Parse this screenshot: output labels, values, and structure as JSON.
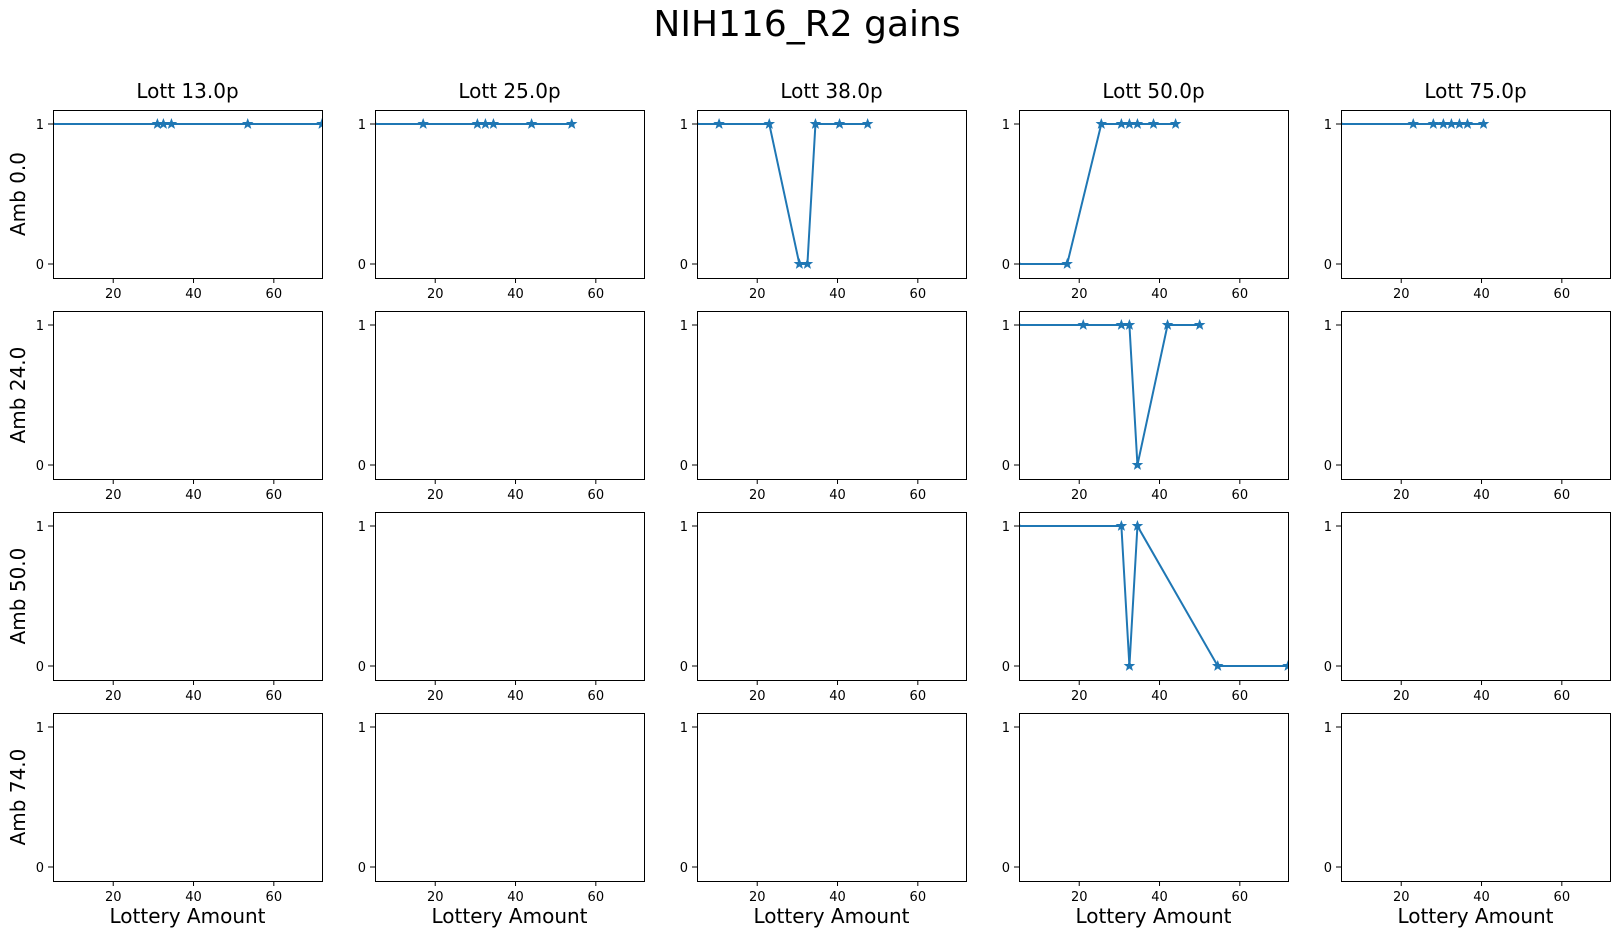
{
  "chart_data": {
    "type": "line",
    "title": "NIH116_R2 gains",
    "xlabel": "Lottery Amount",
    "xlim": [
      5,
      72
    ],
    "ylim": [
      -0.1,
      1.1
    ],
    "xticks": [
      20,
      40,
      60
    ],
    "yticks": [
      0,
      1
    ],
    "marker": "star",
    "line_color": "#1f77b4",
    "columns": [
      "Lott 13.0p",
      "Lott 25.0p",
      "Lott 38.0p",
      "Lott 50.0p",
      "Lott 75.0p"
    ],
    "rows": [
      "Amb 0.0",
      "Amb 24.0",
      "Amb 50.0",
      "Amb 74.0"
    ],
    "panels": [
      {
        "row": 0,
        "col": 0,
        "x": [
          4,
          31,
          32.5,
          34.5,
          53.5,
          72
        ],
        "y": [
          1,
          1,
          1,
          1,
          1,
          1
        ]
      },
      {
        "row": 0,
        "col": 1,
        "x": [
          4,
          17,
          30.5,
          32.5,
          34.5,
          44,
          54
        ],
        "y": [
          1,
          1,
          1,
          1,
          1,
          1,
          1
        ]
      },
      {
        "row": 0,
        "col": 2,
        "x": [
          4,
          10.5,
          23,
          30.5,
          32.5,
          34.5,
          40.5,
          47.5
        ],
        "y": [
          1,
          1,
          1,
          0,
          0,
          1,
          1,
          1
        ]
      },
      {
        "row": 0,
        "col": 3,
        "x": [
          4,
          17,
          25.5,
          30.5,
          32.5,
          34.5,
          38.5,
          44
        ],
        "y": [
          0,
          0,
          1,
          1,
          1,
          1,
          1,
          1
        ]
      },
      {
        "row": 0,
        "col": 4,
        "x": [
          4,
          23,
          28,
          30.5,
          32.5,
          34.5,
          36.5,
          40.5
        ],
        "y": [
          1,
          1,
          1,
          1,
          1,
          1,
          1,
          1
        ]
      },
      {
        "row": 1,
        "col": 3,
        "x": [
          4,
          21,
          30.5,
          32.5,
          34.5,
          42,
          50
        ],
        "y": [
          1,
          1,
          1,
          1,
          0,
          1,
          1
        ]
      },
      {
        "row": 2,
        "col": 3,
        "x": [
          4,
          30.5,
          32.5,
          34.5,
          54.5,
          72
        ],
        "y": [
          1,
          1,
          0,
          1,
          0,
          0
        ]
      }
    ]
  }
}
